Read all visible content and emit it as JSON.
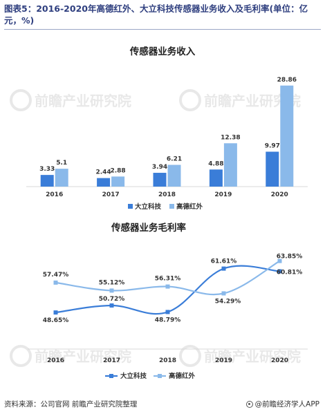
{
  "figure_title": "图表5：2016-2020年高德红外、大立科技传感器业务收入及毛利率(单位：亿元，%)",
  "source_text": "资料来源：公司官网 前瞻产业研究院整理",
  "brand_text": "@前瞻经济学人APP",
  "watermark_text": "前瞻产业研究院",
  "colors": {
    "dali": "#3a7dd8",
    "gaode": "#8ab9ea",
    "title": "#2f3f7f",
    "axis": "#d9d9d9"
  },
  "chart_data": [
    {
      "type": "bar",
      "title": "传感器业务收入",
      "categories": [
        "2016",
        "2017",
        "2018",
        "2019",
        "2020"
      ],
      "series": [
        {
          "name": "大立科技",
          "values": [
            3.33,
            2.44,
            3.94,
            4.88,
            9.97
          ]
        },
        {
          "name": "高德红外",
          "values": [
            5.1,
            2.88,
            6.21,
            12.38,
            28.86
          ]
        }
      ],
      "value_labels": [
        [
          "3.33",
          "2.44",
          "3.94",
          "4.88",
          "9.97"
        ],
        [
          "5.1",
          "2.88",
          "6.21",
          "12.38",
          "28.86"
        ]
      ],
      "ylim": [
        0,
        30
      ],
      "legend": "bottom",
      "grid": false
    },
    {
      "type": "line",
      "title": "传感器业务毛利率",
      "categories": [
        "2016",
        "2017",
        "2018",
        "2019",
        "2020"
      ],
      "series": [
        {
          "name": "大立科技",
          "values": [
            48.65,
            50.72,
            48.79,
            61.61,
            60.81
          ]
        },
        {
          "name": "高德红外",
          "values": [
            57.47,
            55.12,
            56.31,
            54.29,
            63.85
          ]
        }
      ],
      "value_labels": [
        [
          "48.65%",
          "50.72%",
          "48.79%",
          "61.61%",
          "60.81%"
        ],
        [
          "57.47%",
          "55.12%",
          "56.31%",
          "54.29%",
          "63.85%"
        ]
      ],
      "smooth": true,
      "legend": "bottom",
      "grid": false
    }
  ]
}
